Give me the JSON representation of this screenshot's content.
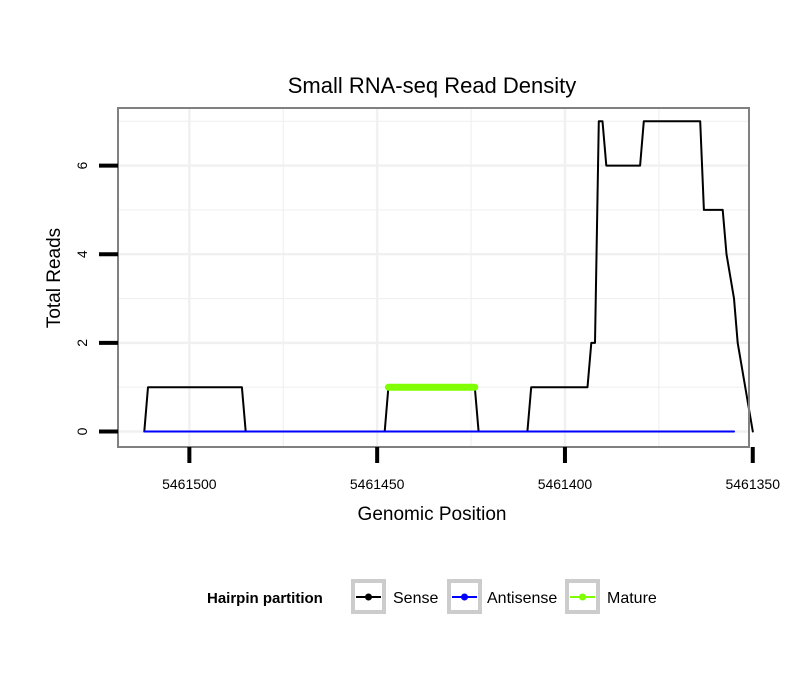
{
  "chart_data": {
    "type": "line",
    "title": "Small RNA-seq Read Density",
    "xlabel": "Genomic Position",
    "ylabel": "Total Reads",
    "x_reversed": true,
    "xlim": [
      5461351,
      5461519
    ],
    "ylim": [
      -0.35,
      7.3
    ],
    "x_ticks": [
      5461500,
      5461450,
      5461400,
      5461350
    ],
    "x_tick_labels": [
      "5461500",
      "5461450",
      "5461400",
      "5461350"
    ],
    "y_ticks": [
      0,
      2,
      4,
      6
    ],
    "y_tick_labels": [
      "0",
      "2",
      "4",
      "6"
    ],
    "grid": true,
    "legend": {
      "title": "Hairpin partition",
      "position": "bottom",
      "entries": [
        {
          "name": "Sense",
          "color": "#000000"
        },
        {
          "name": "Antisense",
          "color": "#0000ff"
        },
        {
          "name": "Mature",
          "color": "#7fff00"
        }
      ]
    },
    "series": [
      {
        "name": "Sense",
        "color": "#000000",
        "x": [
          5461512,
          5461511,
          5461498,
          5461497,
          5461486,
          5461485,
          5461448,
          5461447,
          5461424,
          5461423,
          5461410,
          5461409,
          5461394,
          5461393,
          5461392,
          5461391,
          5461390,
          5461389,
          5461388,
          5461380,
          5461379,
          5461374,
          5461373,
          5461364,
          5461363,
          5461358,
          5461357,
          5461355,
          5461354,
          5461350
        ],
        "y": [
          0,
          1,
          1,
          1,
          1,
          0,
          0,
          1,
          1,
          0,
          0,
          1,
          1,
          2,
          2,
          7,
          7,
          6,
          6,
          6,
          7,
          7,
          7,
          7,
          5,
          5,
          4,
          3,
          2,
          0
        ]
      },
      {
        "name": "Antisense",
        "color": "#0000ff",
        "x": [
          5461512,
          5461355
        ],
        "y": [
          0,
          0
        ]
      },
      {
        "name": "Mature",
        "color": "#7fff00",
        "x": [
          5461447,
          5461424
        ],
        "y": [
          1,
          1
        ]
      }
    ]
  }
}
